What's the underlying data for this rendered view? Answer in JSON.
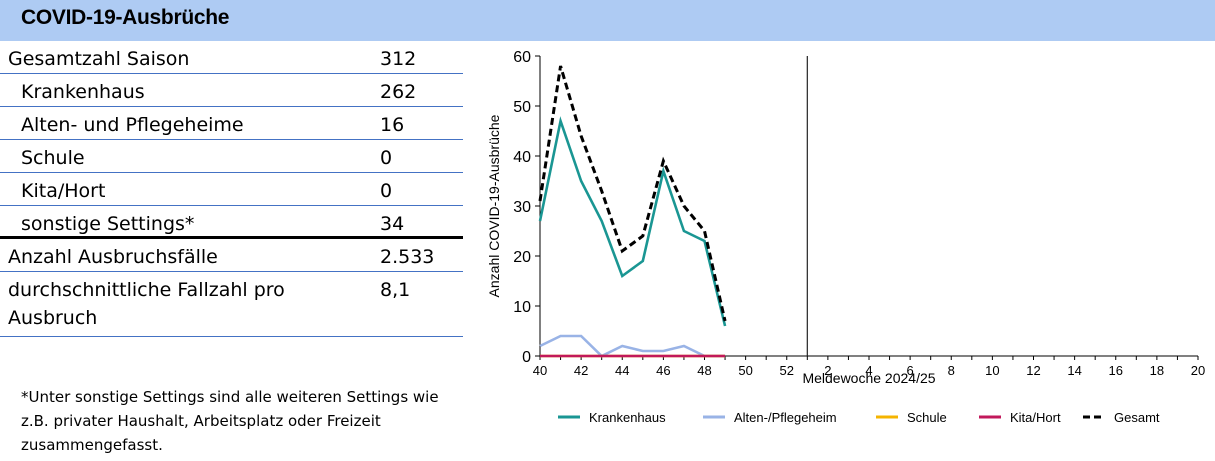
{
  "header": {
    "title": "COVID-19-Ausbrüche"
  },
  "table": {
    "rows": [
      {
        "label": "Gesamtzahl Saison",
        "value": "312"
      },
      {
        "label": "Krankenhaus",
        "value": "262"
      },
      {
        "label": "Alten- und Pflegeheime",
        "value": "16"
      },
      {
        "label": "Schule",
        "value": "0"
      },
      {
        "label": "Kita/Hort",
        "value": "0"
      },
      {
        "label": "sonstige Settings*",
        "value": "34"
      },
      {
        "label": "Anzahl Ausbruchsfälle",
        "value": "2.533"
      },
      {
        "label": "durchschnittliche Fallzahl pro Ausbruch",
        "value": "8,1"
      }
    ]
  },
  "footnote": "*Unter sonstige Settings sind alle weiteren Settings wie z.B. privater Haushalt, Arbeitsplatz oder Freizeit zusammengefasst.",
  "chart_data": {
    "type": "line",
    "title": "",
    "xlabel": "Meldewoche 2024/25",
    "ylabel": "Anzahl COVID-19-Ausbrüche",
    "ylim": [
      0,
      60
    ],
    "yticks": [
      0,
      10,
      20,
      30,
      40,
      50,
      60
    ],
    "xtick_labels": [
      "40",
      "42",
      "44",
      "46",
      "48",
      "50",
      "52",
      "2",
      "4",
      "6",
      "8",
      "10",
      "12",
      "14",
      "16",
      "18",
      "20"
    ],
    "year_break_after_week": 52,
    "x": [
      40,
      41,
      42,
      43,
      44,
      45,
      46,
      47,
      48,
      49
    ],
    "series": [
      {
        "name": "Krankenhaus",
        "color": "#1a9693",
        "dash": "solid",
        "values": [
          27,
          47,
          35,
          27,
          16,
          19,
          37,
          25,
          23,
          6
        ]
      },
      {
        "name": "Alten-/Pflegeheim",
        "color": "#99b3e6",
        "dash": "solid",
        "values": [
          2,
          4,
          4,
          0,
          2,
          1,
          1,
          2,
          0,
          0
        ]
      },
      {
        "name": "Schule",
        "color": "#f5b400",
        "dash": "solid",
        "values": [
          0,
          0,
          0,
          0,
          0,
          0,
          0,
          0,
          0,
          0
        ]
      },
      {
        "name": "Kita/Hort",
        "color": "#c2185b",
        "dash": "solid",
        "values": [
          0,
          0,
          0,
          0,
          0,
          0,
          0,
          0,
          0,
          0
        ]
      },
      {
        "name": "Gesamt",
        "color": "#000000",
        "dash": "dashed",
        "values": [
          31,
          58,
          44,
          33,
          21,
          24,
          39,
          30,
          25,
          7
        ]
      }
    ],
    "legend_position": "bottom"
  }
}
